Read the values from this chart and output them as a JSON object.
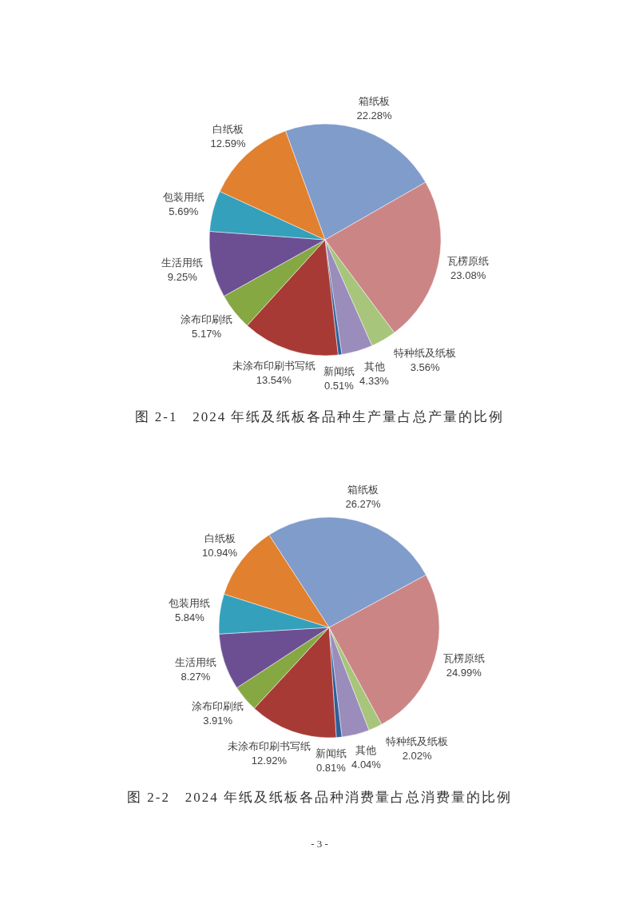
{
  "chart_data": [
    {
      "type": "pie",
      "title": "图 2-1   2024 年纸及纸板各品种生产量占总产量的比例",
      "categories": [
        "箱纸板",
        "瓦楞原纸",
        "特种纸及纸板",
        "其他",
        "新闻纸",
        "未涂布印刷书写纸",
        "涂布印刷纸",
        "生活用纸",
        "包装用纸",
        "白纸板"
      ],
      "values": [
        22.28,
        23.08,
        3.56,
        4.33,
        0.51,
        13.54,
        5.17,
        9.25,
        5.69,
        12.59
      ],
      "value_labels": [
        "22.28%",
        "23.08%",
        "3.56%",
        "4.33%",
        "0.51%",
        "13.54%",
        "5.17%",
        "9.25%",
        "5.69%",
        "12.59%"
      ],
      "colors": [
        "#7f9ccb",
        "#cc8585",
        "#a7c57b",
        "#9a8cbb",
        "#2f5f9b",
        "#a83a35",
        "#86a843",
        "#6b4f92",
        "#35a0bb",
        "#e1802e"
      ]
    },
    {
      "type": "pie",
      "title": "图 2-2   2024 年纸及纸板各品种消费量占总消费量的比例",
      "categories": [
        "箱纸板",
        "瓦楞原纸",
        "特种纸及纸板",
        "其他",
        "新闻纸",
        "未涂布印刷书写纸",
        "涂布印刷纸",
        "生活用纸",
        "包装用纸",
        "白纸板"
      ],
      "values": [
        26.27,
        24.99,
        2.02,
        4.04,
        0.81,
        12.92,
        3.91,
        8.27,
        5.84,
        10.94
      ],
      "value_labels": [
        "26.27%",
        "24.99%",
        "2.02%",
        "4.04%",
        "0.81%",
        "12.92%",
        "3.91%",
        "8.27%",
        "5.84%",
        "10.94%"
      ],
      "colors": [
        "#7f9ccb",
        "#cc8585",
        "#a7c57b",
        "#9a8cbb",
        "#2f5f9b",
        "#a83a35",
        "#86a843",
        "#6b4f92",
        "#35a0bb",
        "#e1802e"
      ],
      "annotations": [
        "- 3 -"
      ]
    }
  ]
}
